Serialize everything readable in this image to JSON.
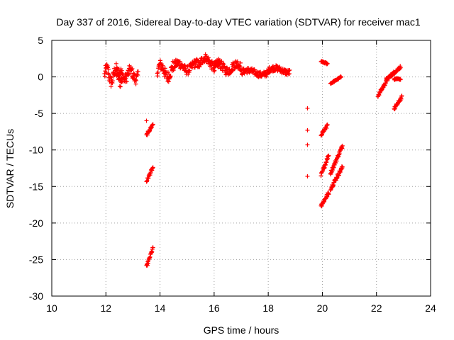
{
  "chart_data": {
    "type": "scatter",
    "title": "Day 337 of 2016, Sidereal Day-to-day VTEC variation (SDTVAR) for receiver mac1",
    "xlabel": "GPS time / hours",
    "ylabel": "SDTVAR / TECUs",
    "xlim": [
      10,
      24
    ],
    "ylim": [
      -30,
      5
    ],
    "xticks": [
      10,
      12,
      14,
      16,
      18,
      20,
      22,
      24
    ],
    "yticks": [
      5,
      0,
      -5,
      -10,
      -15,
      -20,
      -25,
      -30
    ],
    "xtick_labels": [
      "10",
      "12",
      "14",
      "16",
      "18",
      "20",
      "22",
      "24"
    ],
    "ytick_labels": [
      "5",
      "0",
      "-5",
      "-10",
      "-15",
      "-20",
      "-25",
      "-30"
    ],
    "grid": true,
    "marker": "+",
    "color": "#ff0000",
    "series": [
      {
        "name": "SDTVAR",
        "segments": [
          {
            "kind": "wave",
            "x0": 11.95,
            "x1": 12.6,
            "base": 0.2,
            "amp": 0.9,
            "freq": 3.0,
            "noise": 0.8
          },
          {
            "kind": "wave",
            "x0": 12.4,
            "x1": 13.2,
            "base": 0.3,
            "amp": 0.6,
            "freq": 2.5,
            "noise": 0.7
          },
          {
            "kind": "wave",
            "x0": 13.9,
            "x1": 14.5,
            "base": 0.8,
            "amp": 0.8,
            "freq": 2.0,
            "noise": 0.8
          },
          {
            "kind": "wave",
            "x0": 14.5,
            "x1": 15.5,
            "base": 1.4,
            "amp": 0.5,
            "freq": 1.5,
            "noise": 0.6
          },
          {
            "kind": "wave",
            "x0": 15.5,
            "x1": 16.2,
            "base": 2.0,
            "amp": 0.6,
            "freq": 1.5,
            "noise": 0.6
          },
          {
            "kind": "wave",
            "x0": 16.0,
            "x1": 17.0,
            "base": 1.3,
            "amp": 0.5,
            "freq": 1.5,
            "noise": 0.6
          },
          {
            "kind": "wave",
            "x0": 17.0,
            "x1": 18.0,
            "base": 0.6,
            "amp": 0.3,
            "freq": 1.0,
            "noise": 0.4
          },
          {
            "kind": "wave",
            "x0": 18.0,
            "x1": 18.8,
            "base": 0.9,
            "amp": 0.3,
            "freq": 1.0,
            "noise": 0.4
          },
          {
            "kind": "line",
            "x0": 13.5,
            "y0": -8.0,
            "x1": 13.75,
            "y1": -6.4,
            "noise": 0.2
          },
          {
            "kind": "line",
            "x0": 13.5,
            "y0": -14.3,
            "x1": 13.75,
            "y1": -12.3,
            "noise": 0.2
          },
          {
            "kind": "line",
            "x0": 13.5,
            "y0": -26.0,
            "x1": 13.75,
            "y1": -23.3,
            "noise": 0.2
          },
          {
            "kind": "line",
            "x0": 19.95,
            "y0": 2.1,
            "x1": 20.2,
            "y1": 1.8,
            "noise": 0.1
          },
          {
            "kind": "line",
            "x0": 20.3,
            "y0": -0.9,
            "x1": 20.7,
            "y1": 0.0,
            "noise": 0.1
          },
          {
            "kind": "line",
            "x0": 19.95,
            "y0": -7.9,
            "x1": 20.2,
            "y1": -6.6,
            "noise": 0.2
          },
          {
            "kind": "line",
            "x0": 19.95,
            "y0": -13.5,
            "x1": 20.25,
            "y1": -10.5,
            "noise": 0.25
          },
          {
            "kind": "line",
            "x0": 19.95,
            "y0": -17.6,
            "x1": 20.25,
            "y1": -15.8,
            "noise": 0.25
          },
          {
            "kind": "line",
            "x0": 20.3,
            "y0": -13.2,
            "x1": 20.75,
            "y1": -9.4,
            "noise": 0.25
          },
          {
            "kind": "line",
            "x0": 20.3,
            "y0": -15.3,
            "x1": 20.75,
            "y1": -12.3,
            "noise": 0.25
          },
          {
            "kind": "line",
            "x0": 22.05,
            "y0": -2.6,
            "x1": 22.4,
            "y1": -0.4,
            "noise": 0.2
          },
          {
            "kind": "line",
            "x0": 22.35,
            "y0": -0.4,
            "x1": 22.9,
            "y1": 1.4,
            "noise": 0.2
          },
          {
            "kind": "line",
            "x0": 22.65,
            "y0": -0.3,
            "x1": 22.9,
            "y1": -0.3,
            "noise": 0.1
          },
          {
            "kind": "line",
            "x0": 22.65,
            "y0": -4.4,
            "x1": 22.95,
            "y1": -2.7,
            "noise": 0.2
          }
        ],
        "points": [
          {
            "x": 13.5,
            "y": -6.0
          },
          {
            "x": 19.45,
            "y": -4.3
          },
          {
            "x": 19.45,
            "y": -7.3
          },
          {
            "x": 19.45,
            "y": -9.3
          },
          {
            "x": 19.45,
            "y": -13.6
          }
        ]
      }
    ]
  }
}
